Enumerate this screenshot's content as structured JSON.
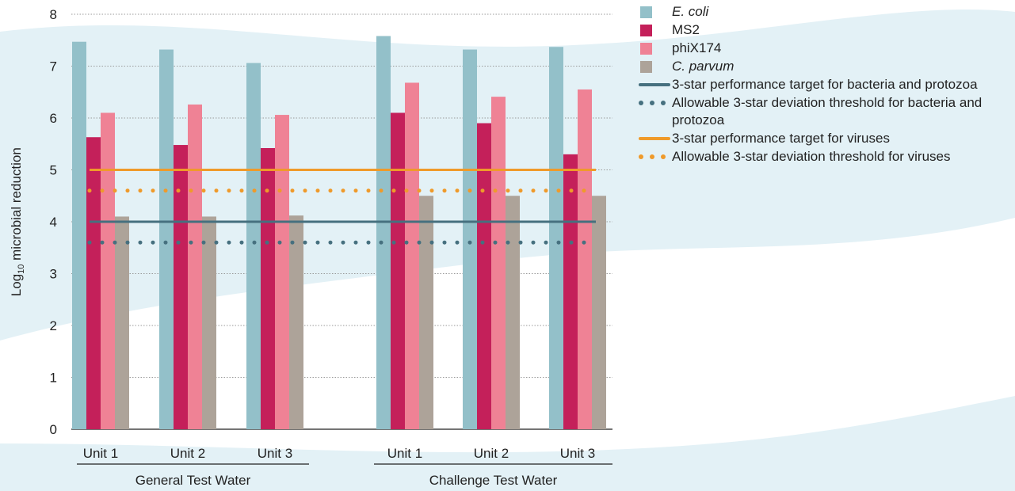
{
  "chart_data": {
    "type": "bar",
    "ylabel_prefix": "Log",
    "ylabel_subscript": "10",
    "ylabel_rest": " microbial reduction",
    "ylim": [
      0,
      8
    ],
    "yticks": [
      "0",
      "1",
      "2",
      "3",
      "4",
      "5",
      "6",
      "7",
      "8"
    ],
    "grid": true,
    "legend_placement": "right",
    "groups": [
      {
        "label": "General Test Water",
        "categories": [
          "Unit 1",
          "Unit 2",
          "Unit 3"
        ]
      },
      {
        "label": "Challenge Test Water",
        "categories": [
          "Unit 1",
          "Unit 2",
          "Unit 3"
        ]
      }
    ],
    "series": [
      {
        "name": "E. coli",
        "italic": true,
        "color": "#93c0c9",
        "values": [
          7.47,
          7.32,
          7.06,
          7.58,
          7.32,
          7.37
        ]
      },
      {
        "name": "MS2",
        "italic": false,
        "color": "#c4205a",
        "values": [
          5.63,
          5.48,
          5.42,
          6.1,
          5.9,
          5.3
        ]
      },
      {
        "name": "phiX174",
        "italic": false,
        "color": "#ef8295",
        "values": [
          6.1,
          6.26,
          6.06,
          6.68,
          6.41,
          6.55
        ]
      },
      {
        "name": "C. parvum",
        "italic": true,
        "color": "#ada399",
        "values": [
          4.1,
          4.1,
          4.12,
          4.5,
          4.5,
          4.5
        ]
      }
    ],
    "reference_lines": [
      {
        "name": "3-star performance target for bacteria and protozoa",
        "value": 4.0,
        "style": "solid",
        "color": "#46707f"
      },
      {
        "name": "Allowable 3-star deviation threshold for bacteria and protozoa",
        "value": 3.6,
        "style": "dotted",
        "color": "#46707f"
      },
      {
        "name": "3-star performance target for viruses",
        "value": 5.0,
        "style": "solid",
        "color": "#ef9a2a"
      },
      {
        "name": "Allowable 3-star deviation threshold for viruses",
        "value": 4.6,
        "style": "dotted",
        "color": "#ef9a2a"
      }
    ]
  },
  "colors": {
    "background_band": "#e3f1f6",
    "grid": "#9a9a9a",
    "axis": "#222222"
  }
}
